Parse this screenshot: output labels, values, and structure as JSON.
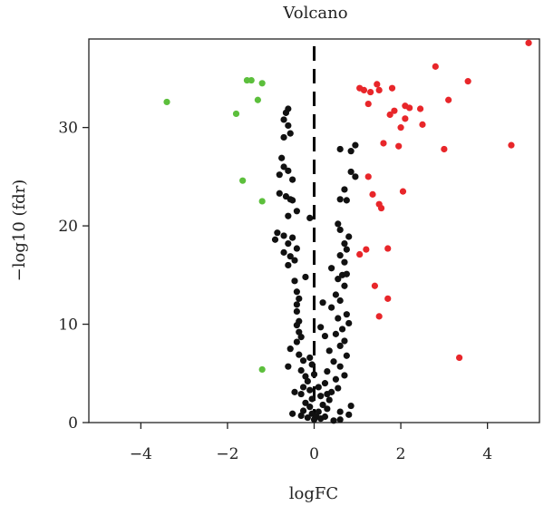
{
  "chart_data": {
    "type": "scatter",
    "title": "Volcano",
    "xlabel": "logFC",
    "ylabel": "−log10 (fdr)",
    "xlim": [
      -5.2,
      5.2
    ],
    "ylim": [
      0,
      39
    ],
    "xticks": [
      -4,
      -2,
      0,
      2,
      4
    ],
    "xtick_labels": [
      "−4",
      "−2",
      "0",
      "2",
      "4"
    ],
    "yticks": [
      0,
      10,
      20,
      30
    ],
    "ytick_labels": [
      "0",
      "10",
      "20",
      "30"
    ],
    "grid": false,
    "legend": "none",
    "reference_line": {
      "x": 0,
      "style": "dashed",
      "color": "#000000"
    },
    "colors": {
      "down": "#5cbf3c",
      "up": "#e8262a",
      "ns": "#111111"
    },
    "series": [
      {
        "name": "",
        "color": "#5cbf3c",
        "points": [
          [
            -3.4,
            32.6
          ],
          [
            -1.8,
            31.4
          ],
          [
            -1.55,
            34.8
          ],
          [
            -1.45,
            34.8
          ],
          [
            -1.3,
            32.8
          ],
          [
            -1.2,
            34.5
          ],
          [
            -1.65,
            24.6
          ],
          [
            -1.2,
            22.5
          ],
          [
            -1.2,
            5.4
          ]
        ]
      },
      {
        "name": "",
        "color": "#e8262a",
        "points": [
          [
            4.95,
            38.6
          ],
          [
            2.8,
            36.2
          ],
          [
            3.55,
            34.7
          ],
          [
            1.05,
            34.0
          ],
          [
            1.15,
            33.8
          ],
          [
            1.3,
            33.6
          ],
          [
            1.5,
            33.8
          ],
          [
            1.45,
            34.4
          ],
          [
            1.8,
            34.0
          ],
          [
            1.25,
            32.4
          ],
          [
            3.1,
            32.8
          ],
          [
            2.1,
            32.2
          ],
          [
            2.2,
            32.0
          ],
          [
            2.45,
            31.9
          ],
          [
            1.85,
            31.7
          ],
          [
            1.75,
            31.3
          ],
          [
            2.1,
            30.9
          ],
          [
            2.0,
            30.0
          ],
          [
            2.5,
            30.3
          ],
          [
            1.6,
            28.4
          ],
          [
            1.95,
            28.1
          ],
          [
            3.0,
            27.8
          ],
          [
            4.55,
            28.2
          ],
          [
            1.25,
            25.0
          ],
          [
            2.05,
            23.5
          ],
          [
            1.35,
            23.2
          ],
          [
            1.5,
            22.2
          ],
          [
            1.55,
            21.8
          ],
          [
            1.05,
            17.1
          ],
          [
            1.2,
            17.6
          ],
          [
            1.7,
            17.7
          ],
          [
            1.4,
            13.9
          ],
          [
            1.7,
            12.6
          ],
          [
            1.5,
            10.8
          ],
          [
            3.35,
            6.6
          ]
        ]
      },
      {
        "name": "",
        "color": "#111111",
        "points": [
          [
            -0.6,
            31.9
          ],
          [
            -0.65,
            31.5
          ],
          [
            -0.7,
            30.8
          ],
          [
            -0.6,
            30.2
          ],
          [
            -0.7,
            29.0
          ],
          [
            -0.55,
            29.4
          ],
          [
            -0.75,
            26.9
          ],
          [
            -0.7,
            26.0
          ],
          [
            -0.6,
            25.6
          ],
          [
            -0.8,
            25.2
          ],
          [
            -0.5,
            24.7
          ],
          [
            -0.65,
            23.0
          ],
          [
            -0.55,
            22.7
          ],
          [
            -0.5,
            22.6
          ],
          [
            -0.6,
            21.0
          ],
          [
            -0.4,
            21.5
          ],
          [
            -0.1,
            20.8
          ],
          [
            -0.85,
            19.3
          ],
          [
            -0.7,
            19.0
          ],
          [
            -0.5,
            18.8
          ],
          [
            -0.9,
            18.6
          ],
          [
            -0.6,
            18.2
          ],
          [
            -0.4,
            17.7
          ],
          [
            -0.7,
            17.3
          ],
          [
            -0.55,
            16.9
          ],
          [
            -0.45,
            16.5
          ],
          [
            -0.6,
            16.0
          ],
          [
            -0.45,
            14.4
          ],
          [
            -0.4,
            13.3
          ],
          [
            -0.35,
            12.6
          ],
          [
            -0.4,
            12.0
          ],
          [
            -0.4,
            11.3
          ],
          [
            -0.35,
            10.3
          ],
          [
            -0.4,
            9.9
          ],
          [
            -0.35,
            9.2
          ],
          [
            -0.3,
            8.7
          ],
          [
            -0.4,
            8.2
          ],
          [
            -0.55,
            7.5
          ],
          [
            -0.35,
            6.9
          ],
          [
            -0.25,
            6.3
          ],
          [
            -0.6,
            5.7
          ],
          [
            -0.3,
            5.3
          ],
          [
            -0.2,
            4.7
          ],
          [
            -0.15,
            4.2
          ],
          [
            -0.25,
            3.6
          ],
          [
            -0.1,
            3.3
          ],
          [
            -0.3,
            2.9
          ],
          [
            -0.05,
            2.4
          ],
          [
            -0.2,
            2.0
          ],
          [
            -0.1,
            1.6
          ],
          [
            -0.25,
            1.2
          ],
          [
            -0.05,
            0.9
          ],
          [
            -0.15,
            0.5
          ],
          [
            0.0,
            0.3
          ],
          [
            -0.3,
            0.7
          ],
          [
            0.05,
            0.6
          ],
          [
            0.15,
            0.4
          ],
          [
            0.1,
            1.1
          ],
          [
            0.25,
            0.6
          ],
          [
            0.3,
            1.4
          ],
          [
            0.45,
            0.2
          ],
          [
            0.2,
            1.8
          ],
          [
            0.35,
            2.3
          ],
          [
            0.6,
            0.3
          ],
          [
            0.15,
            2.7
          ],
          [
            0.4,
            3.1
          ],
          [
            0.55,
            3.5
          ],
          [
            0.25,
            4.0
          ],
          [
            0.5,
            4.4
          ],
          [
            0.7,
            4.8
          ],
          [
            0.3,
            5.2
          ],
          [
            0.6,
            5.7
          ],
          [
            0.45,
            6.2
          ],
          [
            0.75,
            6.8
          ],
          [
            0.35,
            7.3
          ],
          [
            0.6,
            7.8
          ],
          [
            0.7,
            8.3
          ],
          [
            0.5,
            9.0
          ],
          [
            0.65,
            9.5
          ],
          [
            0.8,
            10.1
          ],
          [
            0.55,
            10.6
          ],
          [
            0.75,
            11.0
          ],
          [
            0.4,
            11.7
          ],
          [
            0.6,
            12.4
          ],
          [
            0.5,
            13.0
          ],
          [
            0.7,
            13.9
          ],
          [
            0.55,
            14.6
          ],
          [
            0.65,
            15.0
          ],
          [
            0.75,
            15.1
          ],
          [
            0.7,
            16.3
          ],
          [
            0.6,
            17.0
          ],
          [
            0.75,
            17.6
          ],
          [
            0.7,
            18.2
          ],
          [
            0.8,
            18.9
          ],
          [
            0.6,
            19.6
          ],
          [
            0.75,
            22.6
          ],
          [
            0.6,
            22.7
          ],
          [
            0.7,
            23.7
          ],
          [
            0.85,
            25.5
          ],
          [
            0.95,
            25.0
          ],
          [
            0.6,
            27.8
          ],
          [
            0.85,
            27.6
          ],
          [
            0.95,
            28.2
          ],
          [
            0.8,
            0.8
          ],
          [
            0.85,
            1.7
          ],
          [
            -0.5,
            0.9
          ],
          [
            0.25,
            8.8
          ],
          [
            -0.2,
            14.8
          ],
          [
            0.4,
            15.7
          ],
          [
            -0.8,
            23.3
          ],
          [
            0.55,
            20.2
          ],
          [
            0.0,
            4.9
          ],
          [
            -0.1,
            6.6
          ],
          [
            0.15,
            9.7
          ],
          [
            0.2,
            12.2
          ],
          [
            0.1,
            3.6
          ],
          [
            -0.45,
            3.1
          ],
          [
            0.3,
            2.9
          ],
          [
            0.6,
            1.1
          ],
          [
            -0.05,
            5.9
          ]
        ]
      }
    ]
  }
}
